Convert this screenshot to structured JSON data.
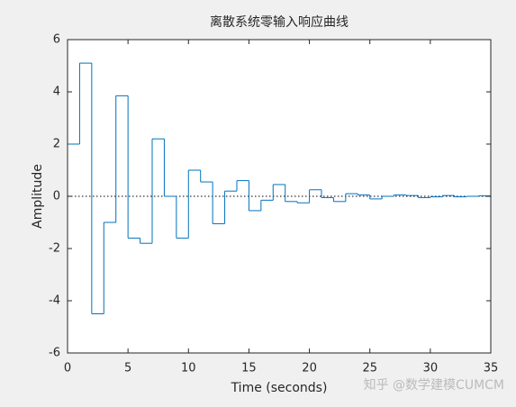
{
  "chart_data": {
    "type": "stairs",
    "title": "离散系统零输入响应曲线",
    "xlabel": "Time (seconds)",
    "ylabel": "Amplitude",
    "watermark": "知乎 @数学建模CUMCM",
    "x": [
      0,
      1,
      2,
      3,
      4,
      5,
      6,
      7,
      8,
      9,
      10,
      11,
      12,
      13,
      14,
      15,
      16,
      17,
      18,
      19,
      20,
      21,
      22,
      23,
      24,
      25,
      26,
      27,
      28,
      29,
      30,
      31,
      32,
      33,
      34
    ],
    "series": [
      {
        "color": "#0072bd",
        "values": [
          2,
          5.1,
          -4.5,
          -1.0,
          3.85,
          -1.6,
          -1.8,
          2.2,
          0,
          -1.6,
          1.0,
          0.55,
          -1.05,
          0.2,
          0.6,
          -0.55,
          -0.15,
          0.45,
          -0.2,
          -0.25,
          0.25,
          -0.05,
          -0.2,
          0.1,
          0.05,
          -0.1,
          0.0,
          0.05,
          0.03,
          -0.05,
          -0.02,
          0.03,
          -0.02,
          0.0,
          0.02
        ]
      }
    ],
    "xlim": [
      0,
      35
    ],
    "xticks": [
      0,
      5,
      10,
      15,
      20,
      25,
      30,
      35
    ],
    "ylim": [
      -6,
      6
    ],
    "yticks": [
      -6,
      -4,
      -2,
      0,
      2,
      4,
      6
    ]
  }
}
